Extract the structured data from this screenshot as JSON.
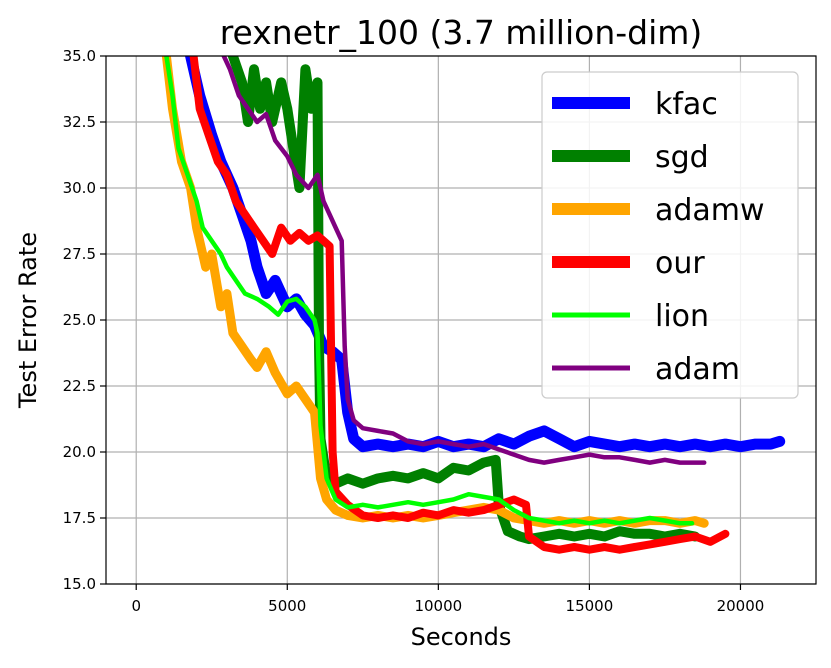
{
  "chart_data": {
    "type": "line",
    "title": "rexnetr_100 (3.7 million-dim)",
    "xlabel": "Seconds",
    "ylabel": "Test Error Rate",
    "xlim": [
      -1000,
      22500
    ],
    "ylim": [
      15.0,
      35.0
    ],
    "xticks": [
      0,
      5000,
      10000,
      15000,
      20000
    ],
    "xtick_labels": [
      "0",
      "5000",
      "10000",
      "15000",
      "20000"
    ],
    "yticks": [
      15.0,
      17.5,
      20.0,
      22.5,
      25.0,
      27.5,
      30.0,
      32.5,
      35.0
    ],
    "ytick_labels": [
      "15.0",
      "17.5",
      "20.0",
      "22.5",
      "25.0",
      "27.5",
      "30.0",
      "32.5",
      "35.0"
    ],
    "grid": true,
    "legend_position": "top-right",
    "series": [
      {
        "name": "kfac",
        "color": "#0000ff",
        "points": [
          [
            1800,
            35.0
          ],
          [
            2100,
            33.5
          ],
          [
            2500,
            32.0
          ],
          [
            2800,
            31.0
          ],
          [
            3200,
            30.0
          ],
          [
            3500,
            29.0
          ],
          [
            3800,
            28.0
          ],
          [
            4000,
            27.0
          ],
          [
            4300,
            26.0
          ],
          [
            4600,
            26.5
          ],
          [
            5000,
            25.5
          ],
          [
            5300,
            25.8
          ],
          [
            5600,
            25.2
          ],
          [
            5900,
            24.8
          ],
          [
            6200,
            24.0
          ],
          [
            6500,
            23.8
          ],
          [
            6800,
            23.5
          ],
          [
            7000,
            21.5
          ],
          [
            7200,
            20.5
          ],
          [
            7500,
            20.2
          ],
          [
            8000,
            20.3
          ],
          [
            8500,
            20.2
          ],
          [
            9000,
            20.3
          ],
          [
            9500,
            20.2
          ],
          [
            10000,
            20.4
          ],
          [
            10500,
            20.2
          ],
          [
            11000,
            20.3
          ],
          [
            11500,
            20.2
          ],
          [
            12000,
            20.5
          ],
          [
            12500,
            20.3
          ],
          [
            13000,
            20.6
          ],
          [
            13500,
            20.8
          ],
          [
            14000,
            20.5
          ],
          [
            14500,
            20.2
          ],
          [
            15000,
            20.4
          ],
          [
            15500,
            20.3
          ],
          [
            16000,
            20.2
          ],
          [
            16500,
            20.3
          ],
          [
            17000,
            20.2
          ],
          [
            17500,
            20.3
          ],
          [
            18000,
            20.2
          ],
          [
            18500,
            20.3
          ],
          [
            19000,
            20.2
          ],
          [
            19500,
            20.3
          ],
          [
            20000,
            20.2
          ],
          [
            20500,
            20.3
          ],
          [
            21000,
            20.3
          ],
          [
            21300,
            20.4
          ]
        ]
      },
      {
        "name": "sgd",
        "color": "#008000",
        "points": [
          [
            3200,
            35.0
          ],
          [
            3500,
            34.0
          ],
          [
            3700,
            32.5
          ],
          [
            3900,
            34.5
          ],
          [
            4100,
            33.0
          ],
          [
            4300,
            34.0
          ],
          [
            4500,
            32.5
          ],
          [
            4800,
            34.0
          ],
          [
            5000,
            33.0
          ],
          [
            5200,
            31.5
          ],
          [
            5400,
            30.0
          ],
          [
            5600,
            34.5
          ],
          [
            5800,
            33.0
          ],
          [
            6000,
            34.0
          ],
          [
            6050,
            24.0
          ],
          [
            6100,
            20.5
          ],
          [
            6300,
            19.0
          ],
          [
            6600,
            18.8
          ],
          [
            7000,
            19.0
          ],
          [
            7500,
            18.8
          ],
          [
            8000,
            19.0
          ],
          [
            8500,
            19.1
          ],
          [
            9000,
            19.0
          ],
          [
            9500,
            19.2
          ],
          [
            10000,
            19.0
          ],
          [
            10500,
            19.4
          ],
          [
            11000,
            19.3
          ],
          [
            11500,
            19.6
          ],
          [
            11900,
            19.7
          ],
          [
            12000,
            18.0
          ],
          [
            12300,
            17.0
          ],
          [
            12700,
            16.8
          ],
          [
            13000,
            16.7
          ],
          [
            13500,
            16.8
          ],
          [
            14000,
            16.9
          ],
          [
            14500,
            16.8
          ],
          [
            15000,
            16.9
          ],
          [
            15500,
            16.8
          ],
          [
            16000,
            17.0
          ],
          [
            16500,
            16.9
          ],
          [
            17000,
            16.9
          ],
          [
            17500,
            16.8
          ],
          [
            18000,
            16.9
          ],
          [
            18500,
            16.8
          ]
        ]
      },
      {
        "name": "adamw",
        "color": "#ffa500",
        "points": [
          [
            1000,
            35.0
          ],
          [
            1200,
            33.0
          ],
          [
            1500,
            31.0
          ],
          [
            1800,
            30.0
          ],
          [
            2000,
            28.5
          ],
          [
            2300,
            27.0
          ],
          [
            2500,
            27.5
          ],
          [
            2800,
            25.5
          ],
          [
            3000,
            26.0
          ],
          [
            3200,
            24.5
          ],
          [
            3500,
            24.0
          ],
          [
            3800,
            23.5
          ],
          [
            4000,
            23.2
          ],
          [
            4300,
            23.8
          ],
          [
            4600,
            23.0
          ],
          [
            5000,
            22.2
          ],
          [
            5300,
            22.5
          ],
          [
            5600,
            22.0
          ],
          [
            5900,
            21.5
          ],
          [
            6100,
            19.0
          ],
          [
            6300,
            18.2
          ],
          [
            6600,
            17.8
          ],
          [
            7000,
            17.6
          ],
          [
            7500,
            17.5
          ],
          [
            8000,
            17.6
          ],
          [
            8500,
            17.5
          ],
          [
            9000,
            17.6
          ],
          [
            9500,
            17.5
          ],
          [
            10000,
            17.6
          ],
          [
            10500,
            17.7
          ],
          [
            11000,
            17.8
          ],
          [
            11500,
            17.9
          ],
          [
            12000,
            17.8
          ],
          [
            12500,
            17.5
          ],
          [
            13000,
            17.4
          ],
          [
            13500,
            17.3
          ],
          [
            14000,
            17.4
          ],
          [
            14500,
            17.3
          ],
          [
            15000,
            17.4
          ],
          [
            15500,
            17.3
          ],
          [
            16000,
            17.4
          ],
          [
            16500,
            17.3
          ],
          [
            17000,
            17.4
          ],
          [
            17500,
            17.4
          ],
          [
            18000,
            17.3
          ],
          [
            18500,
            17.4
          ],
          [
            18800,
            17.3
          ]
        ]
      },
      {
        "name": "our",
        "color": "#ff0000",
        "points": [
          [
            1900,
            35.0
          ],
          [
            2100,
            33.0
          ],
          [
            2400,
            32.0
          ],
          [
            2700,
            31.0
          ],
          [
            3000,
            30.5
          ],
          [
            3300,
            29.5
          ],
          [
            3600,
            29.0
          ],
          [
            3900,
            28.5
          ],
          [
            4200,
            28.0
          ],
          [
            4500,
            27.5
          ],
          [
            4800,
            28.5
          ],
          [
            5100,
            28.0
          ],
          [
            5400,
            28.3
          ],
          [
            5700,
            28.0
          ],
          [
            6000,
            28.2
          ],
          [
            6200,
            28.0
          ],
          [
            6400,
            27.8
          ],
          [
            6500,
            20.0
          ],
          [
            6600,
            18.5
          ],
          [
            7000,
            18.0
          ],
          [
            7500,
            17.6
          ],
          [
            8000,
            17.5
          ],
          [
            8500,
            17.6
          ],
          [
            9000,
            17.5
          ],
          [
            9500,
            17.7
          ],
          [
            10000,
            17.6
          ],
          [
            10500,
            17.8
          ],
          [
            11000,
            17.7
          ],
          [
            11500,
            17.8
          ],
          [
            12000,
            18.0
          ],
          [
            12500,
            18.2
          ],
          [
            12900,
            18.0
          ],
          [
            13000,
            16.8
          ],
          [
            13500,
            16.4
          ],
          [
            14000,
            16.3
          ],
          [
            14500,
            16.4
          ],
          [
            15000,
            16.3
          ],
          [
            15500,
            16.4
          ],
          [
            16000,
            16.3
          ],
          [
            16500,
            16.4
          ],
          [
            17000,
            16.5
          ],
          [
            17500,
            16.6
          ],
          [
            18000,
            16.7
          ],
          [
            18500,
            16.8
          ],
          [
            19000,
            16.6
          ],
          [
            19500,
            16.9
          ]
        ]
      },
      {
        "name": "lion",
        "color": "#00ff00",
        "points": [
          [
            1000,
            35.0
          ],
          [
            1200,
            33.5
          ],
          [
            1400,
            31.5
          ],
          [
            1700,
            30.5
          ],
          [
            2000,
            29.5
          ],
          [
            2200,
            28.5
          ],
          [
            2500,
            28.0
          ],
          [
            2800,
            27.5
          ],
          [
            3000,
            27.0
          ],
          [
            3300,
            26.5
          ],
          [
            3600,
            26.0
          ],
          [
            4000,
            25.8
          ],
          [
            4400,
            25.5
          ],
          [
            4700,
            25.2
          ],
          [
            5000,
            25.7
          ],
          [
            5300,
            25.8
          ],
          [
            5600,
            25.5
          ],
          [
            5900,
            25.0
          ],
          [
            6000,
            24.5
          ],
          [
            6100,
            21.0
          ],
          [
            6300,
            19.0
          ],
          [
            6600,
            18.2
          ],
          [
            7000,
            17.9
          ],
          [
            7500,
            18.0
          ],
          [
            8000,
            17.9
          ],
          [
            8500,
            18.0
          ],
          [
            9000,
            18.1
          ],
          [
            9500,
            18.0
          ],
          [
            10000,
            18.1
          ],
          [
            10500,
            18.2
          ],
          [
            11000,
            18.4
          ],
          [
            11500,
            18.3
          ],
          [
            12000,
            18.2
          ],
          [
            12500,
            17.8
          ],
          [
            13000,
            17.5
          ],
          [
            13500,
            17.4
          ],
          [
            14000,
            17.3
          ],
          [
            14500,
            17.4
          ],
          [
            15000,
            17.3
          ],
          [
            15500,
            17.4
          ],
          [
            16000,
            17.3
          ],
          [
            16500,
            17.4
          ],
          [
            17000,
            17.5
          ],
          [
            17500,
            17.4
          ],
          [
            18000,
            17.3
          ],
          [
            18400,
            17.3
          ]
        ]
      },
      {
        "name": "adam",
        "color": "#800080",
        "points": [
          [
            2900,
            35.0
          ],
          [
            3100,
            34.5
          ],
          [
            3400,
            33.5
          ],
          [
            3700,
            33.0
          ],
          [
            4000,
            32.5
          ],
          [
            4300,
            32.8
          ],
          [
            4600,
            31.8
          ],
          [
            5000,
            31.2
          ],
          [
            5300,
            30.5
          ],
          [
            5700,
            30.0
          ],
          [
            6000,
            30.5
          ],
          [
            6200,
            29.5
          ],
          [
            6400,
            29.0
          ],
          [
            6600,
            28.5
          ],
          [
            6800,
            28.0
          ],
          [
            6900,
            24.0
          ],
          [
            7000,
            22.0
          ],
          [
            7200,
            21.2
          ],
          [
            7500,
            20.9
          ],
          [
            8000,
            20.8
          ],
          [
            8500,
            20.7
          ],
          [
            9000,
            20.4
          ],
          [
            9500,
            20.3
          ],
          [
            10000,
            20.4
          ],
          [
            10500,
            20.3
          ],
          [
            11000,
            20.2
          ],
          [
            11500,
            20.3
          ],
          [
            12000,
            20.1
          ],
          [
            12500,
            19.9
          ],
          [
            13000,
            19.7
          ],
          [
            13500,
            19.6
          ],
          [
            14000,
            19.7
          ],
          [
            14500,
            19.8
          ],
          [
            15000,
            19.9
          ],
          [
            15500,
            19.8
          ],
          [
            16000,
            19.8
          ],
          [
            16500,
            19.7
          ],
          [
            17000,
            19.6
          ],
          [
            17500,
            19.7
          ],
          [
            18000,
            19.6
          ],
          [
            18500,
            19.6
          ],
          [
            18800,
            19.6
          ]
        ]
      }
    ]
  }
}
